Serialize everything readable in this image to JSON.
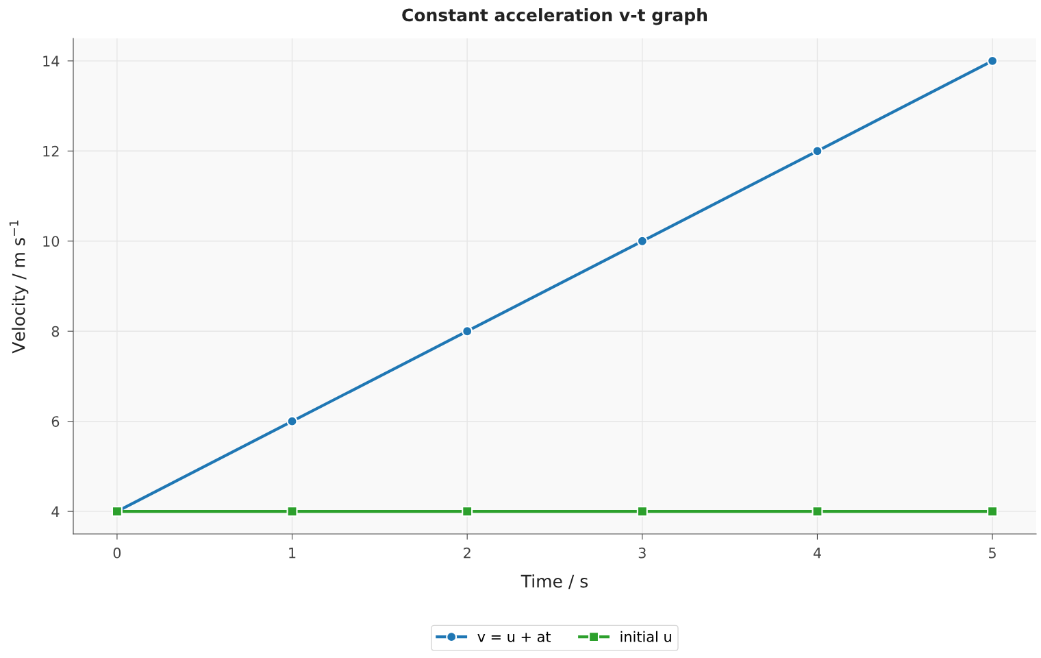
{
  "chart_data": {
    "type": "line",
    "title": "Constant acceleration v-t graph",
    "xlabel": "Time / s",
    "ylabel": "Velocity / m s$^{−1}$",
    "x": [
      0,
      1,
      2,
      3,
      4,
      5
    ],
    "series": [
      {
        "name": "v = u + at",
        "color": "#1f77b4",
        "marker": "circle",
        "values": [
          4,
          6,
          8,
          10,
          12,
          14
        ]
      },
      {
        "name": "initial u",
        "color": "#2ca02c",
        "marker": "square",
        "values": [
          4,
          4,
          4,
          4,
          4,
          4
        ]
      }
    ],
    "xlim": [
      -0.25,
      5.25
    ],
    "ylim": [
      3.5,
      14.5
    ],
    "xticks": [
      0,
      1,
      2,
      3,
      4,
      5
    ],
    "yticks": [
      4,
      6,
      8,
      10,
      12,
      14
    ],
    "grid": true,
    "legend": "bottom",
    "line_style": "solid"
  }
}
